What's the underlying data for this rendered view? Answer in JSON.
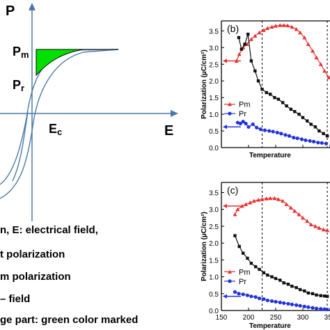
{
  "diagram": {
    "p_axis_label": "P",
    "e_axis_label": "E",
    "pm_label": "P",
    "pm_sub": "m",
    "pr_label": "P",
    "pr_sub": "r",
    "ec_label": "E",
    "ec_sub": "c",
    "fill_color": "#00e000"
  },
  "legend_lines": [
    "n,  E: electrical field,",
    "t polarization",
    "m polarization",
    "– field",
    "ge part: green color marked"
  ],
  "colors": {
    "pm_series": "#e83030",
    "pr_series": "#2233dd",
    "black_series": "#111111"
  },
  "chart_data": [
    {
      "type": "line",
      "panel_label": "(b)",
      "ylabel": "Polarization (µC/cm²)",
      "xlabel": "Temperature",
      "xlim": [
        150,
        350
      ],
      "ylim": [
        0,
        3.8
      ],
      "x_ticks": [
        "150",
        "200",
        "250",
        "300",
        "350"
      ],
      "y_ticks": [
        "0.0",
        "0.5",
        "1.0",
        "1.5",
        "2.0",
        "2.5",
        "3.0",
        "3.5"
      ],
      "dashed_x": [
        225,
        345
      ],
      "series": [
        {
          "name": "Pm",
          "marker": "triangle",
          "color": "#e83030",
          "x": [
            178,
            183,
            190,
            197,
            205,
            212,
            220,
            228,
            235,
            243,
            250,
            258,
            265,
            272,
            280,
            288,
            295,
            303,
            310,
            318,
            325,
            333,
            340,
            348
          ],
          "y": [
            2.6,
            2.8,
            3.0,
            3.1,
            3.25,
            3.35,
            3.45,
            3.52,
            3.58,
            3.62,
            3.65,
            3.67,
            3.67,
            3.66,
            3.62,
            3.55,
            3.45,
            3.3,
            3.1,
            2.9,
            2.7,
            2.5,
            2.3,
            2.1
          ]
        },
        {
          "name": "Pr",
          "marker": "circle",
          "color": "#2233dd",
          "x": [
            180,
            185,
            190,
            195,
            200,
            208,
            215,
            222,
            230,
            238,
            245,
            253,
            260,
            268,
            275,
            283,
            290,
            298,
            305,
            313,
            320,
            328,
            335,
            343
          ],
          "y": [
            0.75,
            0.72,
            0.78,
            0.72,
            0.62,
            0.7,
            0.6,
            0.55,
            0.52,
            0.5,
            0.48,
            0.45,
            0.42,
            0.38,
            0.35,
            0.3,
            0.28,
            0.25,
            0.22,
            0.2,
            0.18,
            0.15,
            0.14,
            0.12
          ]
        },
        {
          "name": "",
          "marker": "square",
          "color": "#111111",
          "x": [
            182,
            187,
            193,
            199,
            205,
            212,
            218,
            225,
            233,
            240,
            248,
            255,
            263,
            270,
            278,
            285,
            293,
            300,
            308,
            315,
            323,
            330,
            338,
            345
          ],
          "y": [
            3.3,
            2.95,
            3.1,
            3.4,
            2.6,
            2.3,
            2.0,
            1.75,
            1.65,
            1.6,
            1.5,
            1.45,
            1.35,
            1.25,
            1.15,
            1.08,
            1.0,
            0.9,
            0.8,
            0.7,
            0.62,
            0.5,
            0.42,
            0.35
          ]
        }
      ],
      "left_arrows": [
        2.6,
        0.62
      ]
    },
    {
      "type": "line",
      "panel_label": "(c)",
      "ylabel": "Polarization (µC/cm²)",
      "xlabel": "Temperature",
      "xlim": [
        150,
        350
      ],
      "ylim": [
        0,
        3.8
      ],
      "x_ticks": [
        "150",
        "200",
        "250",
        "300",
        "350"
      ],
      "y_ticks": [
        "0.0",
        "0.5",
        "1.0",
        "1.5",
        "2.0",
        "2.5",
        "3.0",
        "3.5"
      ],
      "dashed_x": [
        225,
        345
      ],
      "series": [
        {
          "name": "Pm",
          "marker": "triangle",
          "color": "#e83030",
          "x": [
            175,
            180,
            188,
            195,
            203,
            210,
            218,
            225,
            233,
            240,
            248,
            255,
            263,
            270,
            278,
            285,
            293,
            300,
            308,
            315,
            323,
            330,
            338,
            345
          ],
          "y": [
            2.85,
            3.0,
            3.1,
            3.15,
            3.2,
            3.25,
            3.28,
            3.3,
            3.32,
            3.33,
            3.33,
            3.3,
            3.25,
            3.15,
            3.05,
            2.95,
            2.85,
            2.75,
            2.65,
            2.55,
            2.5,
            2.45,
            2.4,
            2.38
          ]
        },
        {
          "name": "Pr",
          "marker": "circle",
          "color": "#2233dd",
          "x": [
            175,
            182,
            190,
            198,
            205,
            213,
            220,
            228,
            235,
            243,
            250,
            258,
            265,
            273,
            280,
            288,
            295,
            303,
            310,
            318,
            325,
            333,
            340,
            345
          ],
          "y": [
            0.55,
            0.5,
            0.48,
            0.45,
            0.42,
            0.4,
            0.36,
            0.34,
            0.3,
            0.28,
            0.26,
            0.24,
            0.22,
            0.2,
            0.18,
            0.16,
            0.14,
            0.12,
            0.1,
            0.08,
            0.06,
            0.05,
            0.04,
            0.03
          ]
        },
        {
          "name": "",
          "marker": "square",
          "color": "#111111",
          "x": [
            175,
            183,
            190,
            198,
            205,
            213,
            220,
            228,
            235,
            243,
            250,
            258,
            265,
            273,
            280,
            288,
            295,
            303,
            310,
            318,
            325,
            333,
            340,
            345
          ],
          "y": [
            2.22,
            1.9,
            1.7,
            1.55,
            1.4,
            1.3,
            1.22,
            1.12,
            1.05,
            1.0,
            0.95,
            0.9,
            0.82,
            0.78,
            0.72,
            0.68,
            0.62,
            0.58,
            0.52,
            0.5,
            0.46,
            0.44,
            0.43,
            0.42
          ]
        }
      ],
      "left_arrows": [
        3.1,
        0.42
      ]
    }
  ]
}
